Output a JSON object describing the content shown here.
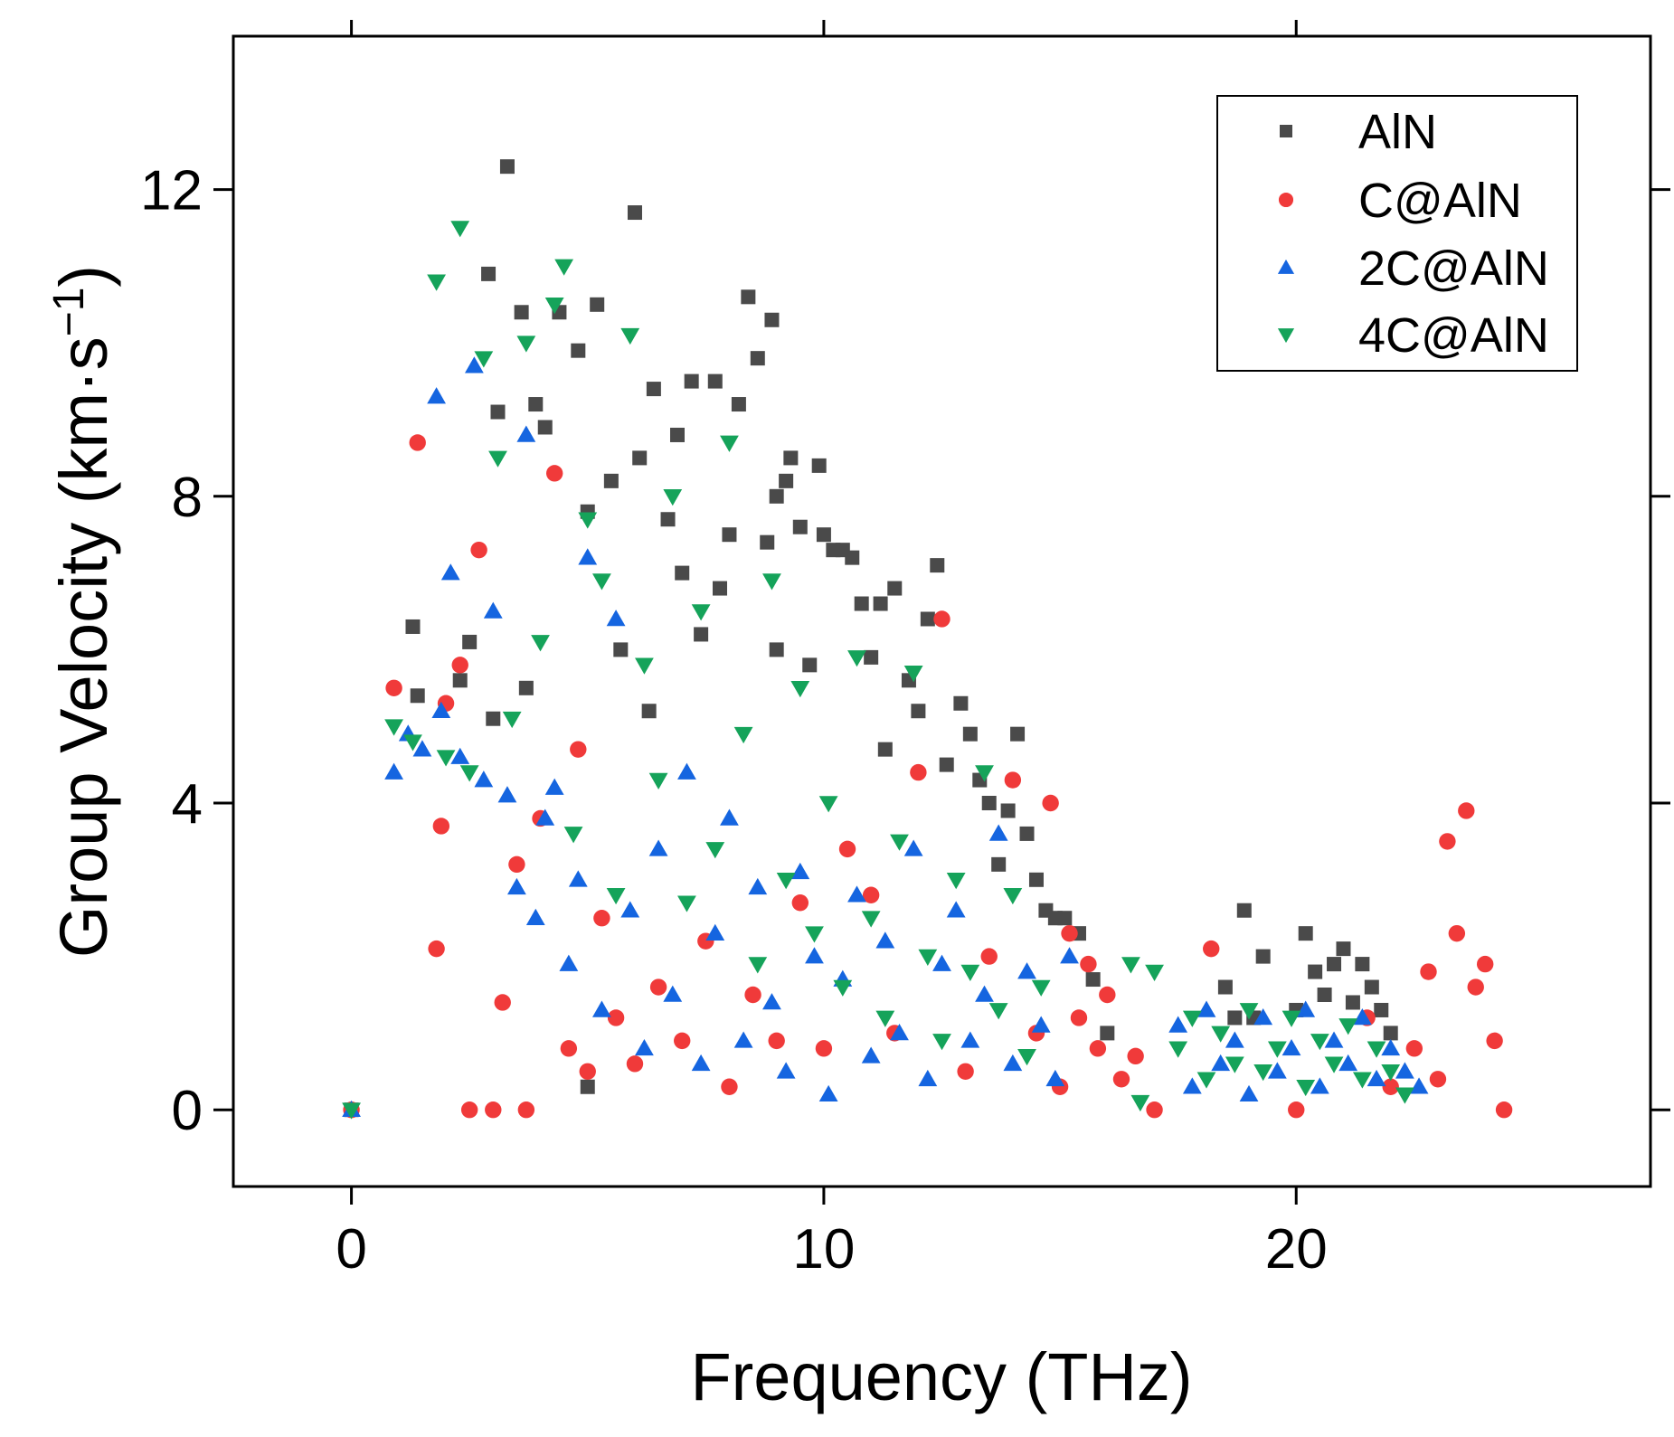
{
  "chart_data": {
    "type": "scatter",
    "title": "",
    "xlabel": "Frequency (THz)",
    "ylabel_main": "Group Velocity (km·s",
    "ylabel_sup": "−1",
    "ylabel_close": ")",
    "xlim": [
      -2.5,
      27.5
    ],
    "ylim": [
      -1.0,
      14.0
    ],
    "xticks": [
      0,
      10,
      20
    ],
    "xtick_labels": [
      "0",
      "10",
      "20"
    ],
    "yticks": [
      0,
      4,
      8,
      12
    ],
    "ytick_labels": [
      "0",
      "4",
      "8",
      "12"
    ],
    "legend_position": "top-right",
    "series": [
      {
        "name": "AlN",
        "marker": "square",
        "color": "#4a4a4a",
        "x": [
          0,
          1.3,
          1.4,
          2.3,
          2.5,
          2.9,
          3.0,
          3.1,
          3.3,
          3.6,
          3.7,
          3.9,
          4.1,
          4.4,
          4.8,
          5.0,
          5.0,
          5.2,
          5.5,
          5.7,
          6.0,
          6.1,
          6.3,
          6.4,
          6.7,
          6.9,
          7.0,
          7.2,
          7.4,
          7.7,
          7.8,
          8.0,
          8.2,
          8.4,
          8.6,
          8.8,
          8.9,
          9.0,
          9.0,
          9.2,
          9.3,
          9.5,
          9.7,
          9.9,
          10.0,
          10.2,
          10.4,
          10.6,
          10.8,
          11.0,
          11.2,
          11.3,
          11.5,
          11.8,
          12.0,
          12.2,
          12.4,
          12.6,
          12.9,
          13.1,
          13.3,
          13.5,
          13.7,
          13.9,
          14.1,
          14.3,
          14.5,
          14.7,
          14.9,
          15.1,
          15.4,
          15.7,
          16.0,
          18.5,
          18.7,
          18.9,
          19.1,
          19.3,
          20.0,
          20.2,
          20.4,
          20.6,
          20.8,
          21.0,
          21.2,
          21.4,
          21.6,
          21.8,
          22.0
        ],
        "y": [
          0,
          6.3,
          5.4,
          5.6,
          6.1,
          10.9,
          5.1,
          9.1,
          12.3,
          10.4,
          5.5,
          9.2,
          8.9,
          10.4,
          9.9,
          7.8,
          0.3,
          10.5,
          8.2,
          6.0,
          11.7,
          8.5,
          5.2,
          9.4,
          7.7,
          8.8,
          7.0,
          9.5,
          6.2,
          9.5,
          6.8,
          7.5,
          9.2,
          10.6,
          9.8,
          7.4,
          10.3,
          8.0,
          6.0,
          8.2,
          8.5,
          7.6,
          5.8,
          8.4,
          7.5,
          7.3,
          7.3,
          7.2,
          6.6,
          5.9,
          6.6,
          4.7,
          6.8,
          5.6,
          5.2,
          6.4,
          7.1,
          4.5,
          5.3,
          4.9,
          4.3,
          4.0,
          3.2,
          3.9,
          4.9,
          3.6,
          3.0,
          2.6,
          2.5,
          2.5,
          2.3,
          1.7,
          1.0,
          1.6,
          1.2,
          2.6,
          1.2,
          2.0,
          1.3,
          2.3,
          1.8,
          1.5,
          1.9,
          2.1,
          1.4,
          1.9,
          1.6,
          1.3,
          1.0
        ]
      },
      {
        "name": "C@AlN",
        "marker": "circle",
        "color": "#f03a3a",
        "x": [
          0,
          0.9,
          1.4,
          1.8,
          1.9,
          2.0,
          2.3,
          2.5,
          2.7,
          3.0,
          3.2,
          3.5,
          3.7,
          4.0,
          4.3,
          4.6,
          4.8,
          5.0,
          5.3,
          5.6,
          6.0,
          6.5,
          7.0,
          7.5,
          8.0,
          8.5,
          9.0,
          9.5,
          10.0,
          10.5,
          11.0,
          11.5,
          12.0,
          12.5,
          13.0,
          13.5,
          14.0,
          14.5,
          14.8,
          15.0,
          15.2,
          15.4,
          15.6,
          15.8,
          16.0,
          16.3,
          16.6,
          17.0,
          18.2,
          20.0,
          21.5,
          22.0,
          22.5,
          22.8,
          23.0,
          23.2,
          23.4,
          23.6,
          23.8,
          24.0,
          24.2,
          24.4
        ],
        "y": [
          0,
          5.5,
          8.7,
          2.1,
          3.7,
          5.3,
          5.8,
          0,
          7.3,
          0,
          1.4,
          3.2,
          0,
          3.8,
          8.3,
          0.8,
          4.7,
          0.5,
          2.5,
          1.2,
          0.6,
          1.6,
          0.9,
          2.2,
          0.3,
          1.5,
          0.9,
          2.7,
          0.8,
          3.4,
          2.8,
          1.0,
          4.4,
          6.4,
          0.5,
          2.0,
          4.3,
          1.0,
          4.0,
          0.3,
          2.3,
          1.2,
          1.9,
          0.8,
          1.5,
          0.4,
          0.7,
          0,
          2.1,
          0,
          1.2,
          0.3,
          0.8,
          1.8,
          0.4,
          3.5,
          2.3,
          3.9,
          1.6,
          1.9,
          0.9,
          0
        ]
      },
      {
        "name": "2C@AlN",
        "marker": "triangle-up",
        "color": "#1565e0",
        "x": [
          0,
          0.9,
          1.2,
          1.5,
          1.8,
          1.9,
          2.1,
          2.3,
          2.6,
          2.8,
          3.0,
          3.3,
          3.5,
          3.7,
          3.9,
          4.1,
          4.3,
          4.6,
          4.8,
          5.0,
          5.3,
          5.6,
          5.9,
          6.2,
          6.5,
          6.8,
          7.1,
          7.4,
          7.7,
          8.0,
          8.3,
          8.6,
          8.9,
          9.2,
          9.5,
          9.8,
          10.1,
          10.4,
          10.7,
          11.0,
          11.3,
          11.6,
          11.9,
          12.2,
          12.5,
          12.8,
          13.1,
          13.4,
          13.7,
          14.0,
          14.3,
          14.6,
          14.9,
          15.2,
          17.5,
          17.8,
          18.1,
          18.4,
          18.7,
          19.0,
          19.3,
          19.6,
          19.9,
          20.2,
          20.5,
          20.8,
          21.1,
          21.4,
          21.7,
          22.0,
          22.3,
          22.6
        ],
        "y": [
          0,
          4.4,
          4.9,
          4.7,
          9.3,
          5.2,
          7.0,
          4.6,
          9.7,
          4.3,
          6.5,
          4.1,
          2.9,
          8.8,
          2.5,
          3.8,
          4.2,
          1.9,
          3.0,
          7.2,
          1.3,
          6.4,
          2.6,
          0.8,
          3.4,
          1.5,
          4.4,
          0.6,
          2.3,
          3.8,
          0.9,
          2.9,
          1.4,
          0.5,
          3.1,
          2.0,
          0.2,
          1.7,
          2.8,
          0.7,
          2.2,
          1.0,
          3.4,
          0.4,
          1.9,
          2.6,
          0.9,
          1.5,
          3.6,
          0.6,
          1.8,
          1.1,
          0.4,
          2.0,
          1.1,
          0.3,
          1.3,
          0.6,
          0.9,
          0.2,
          1.2,
          0.5,
          0.8,
          1.3,
          0.3,
          0.9,
          0.6,
          1.2,
          0.4,
          0.8,
          0.5,
          0.3
        ]
      },
      {
        "name": "4C@AlN",
        "marker": "triangle-down",
        "color": "#15a35a",
        "x": [
          0,
          0.9,
          1.3,
          1.8,
          2.0,
          2.3,
          2.5,
          2.8,
          3.1,
          3.4,
          3.7,
          4.0,
          4.3,
          4.5,
          4.7,
          5.0,
          5.3,
          5.6,
          5.9,
          6.2,
          6.5,
          6.8,
          7.1,
          7.4,
          7.7,
          8.0,
          8.3,
          8.6,
          8.9,
          9.2,
          9.5,
          9.8,
          10.1,
          10.4,
          10.7,
          11.0,
          11.3,
          11.6,
          11.9,
          12.2,
          12.5,
          12.8,
          13.1,
          13.4,
          13.7,
          14.0,
          14.3,
          14.6,
          16.5,
          16.7,
          17.0,
          17.5,
          17.8,
          18.1,
          18.4,
          18.7,
          19.0,
          19.3,
          19.6,
          19.9,
          20.2,
          20.5,
          20.8,
          21.1,
          21.4,
          21.7,
          22.0,
          22.3
        ],
        "y": [
          0,
          5.0,
          4.8,
          10.8,
          4.6,
          11.5,
          4.4,
          9.8,
          8.5,
          5.1,
          10.0,
          6.1,
          10.5,
          11.0,
          3.6,
          7.7,
          6.9,
          2.8,
          10.1,
          5.8,
          4.3,
          8.0,
          2.7,
          6.5,
          3.4,
          8.7,
          4.9,
          1.9,
          6.9,
          3.0,
          5.5,
          2.3,
          4.0,
          1.6,
          5.9,
          2.5,
          1.2,
          3.5,
          5.7,
          2.0,
          0.9,
          3.0,
          1.8,
          4.4,
          1.3,
          2.8,
          0.7,
          1.6,
          1.9,
          0.1,
          1.8,
          0.8,
          1.2,
          0.4,
          1.0,
          0.6,
          1.3,
          0.5,
          0.8,
          1.2,
          0.3,
          0.9,
          0.6,
          1.1,
          0.4,
          0.8,
          0.5,
          0.2
        ]
      }
    ]
  }
}
